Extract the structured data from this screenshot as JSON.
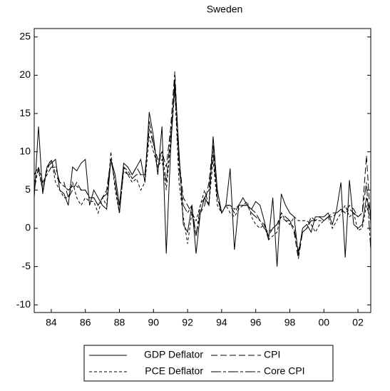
{
  "chart_data": {
    "type": "line",
    "title": "Sweden",
    "x": [
      1983,
      1983.25,
      1983.5,
      1983.75,
      1984,
      1984.25,
      1984.5,
      1984.75,
      1985,
      1985.25,
      1985.5,
      1985.75,
      1986,
      1986.25,
      1986.5,
      1986.75,
      1987,
      1987.25,
      1987.5,
      1987.75,
      1988,
      1988.25,
      1988.5,
      1988.75,
      1989,
      1989.25,
      1989.5,
      1989.75,
      1990,
      1990.25,
      1990.5,
      1990.75,
      1991,
      1991.25,
      1991.5,
      1991.75,
      1992,
      1992.25,
      1992.5,
      1992.75,
      1993,
      1993.25,
      1993.5,
      1993.75,
      1994,
      1994.25,
      1994.5,
      1994.75,
      1995,
      1995.25,
      1995.5,
      1995.75,
      1996,
      1996.25,
      1996.5,
      1996.75,
      1997,
      1997.25,
      1997.5,
      1997.75,
      1998,
      1998.25,
      1998.5,
      1998.75,
      1999,
      1999.25,
      1999.5,
      1999.75,
      2000,
      2000.25,
      2000.5,
      2000.75,
      2001,
      2001.25,
      2001.5,
      2001.75,
      2002,
      2002.25,
      2002.5,
      2002.75
    ],
    "series": [
      {
        "name": "GDP Deflator",
        "color": "#000000",
        "dash": "none",
        "values": [
          4,
          13.3,
          4.5,
          8,
          8.5,
          9,
          5,
          4.5,
          3,
          8,
          7.5,
          8.5,
          9,
          3,
          5,
          4,
          3,
          2.5,
          9,
          7,
          3,
          8.5,
          8,
          7,
          8,
          9,
          6,
          15.2,
          12,
          7,
          13.3,
          -3.3,
          10,
          19.5,
          10,
          0.5,
          -0.5,
          3,
          -3.3,
          2,
          4,
          3,
          12,
          5,
          2,
          3,
          7.8,
          -2.8,
          3,
          4,
          3,
          2.5,
          3.5,
          3,
          1,
          -1.5,
          4,
          -5,
          4.5,
          3,
          2,
          1.5,
          -3.5,
          0,
          0.5,
          -0.5,
          1.5,
          1.5,
          1.5,
          2,
          0.5,
          2.5,
          6,
          -3.8,
          6.3,
          0.5,
          0,
          0.5,
          4,
          2
        ]
      },
      {
        "name": "CPI",
        "color": "#000000",
        "dash": "9,4",
        "values": [
          7,
          8,
          5,
          8,
          9,
          7,
          6,
          6,
          4,
          5,
          6,
          5,
          5,
          4,
          4,
          3,
          4,
          5,
          9,
          6,
          2,
          8,
          7,
          7,
          8,
          7,
          7,
          13,
          11,
          9,
          10,
          8,
          13,
          20.5,
          9,
          4,
          3,
          2,
          -1,
          2,
          3,
          6,
          11,
          4,
          2,
          3,
          3,
          2,
          3,
          3,
          3,
          2.5,
          2,
          1,
          0.5,
          -1,
          0,
          0.5,
          2,
          1.5,
          1,
          -0.5,
          -4,
          -0.5,
          0,
          1.5,
          1,
          1.5,
          1,
          1.5,
          2,
          2,
          2.5,
          2,
          3,
          2.5,
          1.5,
          2,
          9.5,
          0.5
        ]
      },
      {
        "name": "PCE Deflator",
        "color": "#000000",
        "dash": "4,3",
        "values": [
          6,
          7.5,
          5,
          7.5,
          9,
          6,
          5,
          4,
          4,
          6,
          4,
          3,
          4,
          3.5,
          3.5,
          2,
          4,
          3,
          10,
          5,
          2,
          7.5,
          7,
          6,
          6.5,
          5,
          6,
          12,
          10,
          8,
          9,
          5,
          11,
          18,
          6,
          1.5,
          -2,
          2,
          1,
          3,
          5,
          3,
          9,
          3,
          2,
          3,
          2,
          1.5,
          2.5,
          3,
          3.5,
          1.5,
          0.5,
          0,
          0.5,
          -1.5,
          -1,
          -0.5,
          2,
          1,
          0.5,
          1.5,
          1,
          1,
          1,
          0.5,
          -0.5,
          0.5,
          1,
          1.5,
          0,
          1,
          2,
          3,
          1.5,
          2,
          -0.3,
          0,
          3,
          1
        ]
      },
      {
        "name": "Core CPI",
        "color": "#000000",
        "dash": "14,3,4,3",
        "values": [
          5,
          8,
          6,
          7,
          8,
          8,
          6,
          5.5,
          5,
          5.5,
          5.5,
          5,
          5,
          4,
          4,
          3,
          4,
          4.5,
          9,
          6,
          2,
          8,
          7.5,
          6.5,
          7,
          7,
          7,
          14,
          11,
          8,
          10,
          6,
          12,
          18.5,
          8,
          3,
          2,
          3,
          -1,
          3,
          4,
          5,
          10,
          4,
          2,
          3,
          3,
          2.5,
          3,
          3,
          3,
          2,
          1.5,
          1,
          0,
          -0.5,
          0,
          0.5,
          1.5,
          1,
          1,
          0,
          -3,
          -0.5,
          0,
          1,
          1,
          1,
          1,
          1.5,
          1.5,
          2,
          2.5,
          2,
          2.5,
          2,
          1.5,
          2,
          6,
          -2.8
        ]
      }
    ],
    "xlim": [
      1983,
      2002.75
    ],
    "xticks": [
      {
        "value": 1984,
        "label": "84"
      },
      {
        "value": 1986,
        "label": "86"
      },
      {
        "value": 1988,
        "label": "88"
      },
      {
        "value": 1990,
        "label": "90"
      },
      {
        "value": 1992,
        "label": "92"
      },
      {
        "value": 1994,
        "label": "94"
      },
      {
        "value": 1996,
        "label": "96"
      },
      {
        "value": 1998,
        "label": "98"
      },
      {
        "value": 2000,
        "label": "00"
      },
      {
        "value": 2002,
        "label": "02"
      }
    ],
    "ylim": [
      -11,
      26.1
    ],
    "yticks": [
      -10,
      -5,
      0,
      5,
      10,
      15,
      20,
      25
    ]
  }
}
